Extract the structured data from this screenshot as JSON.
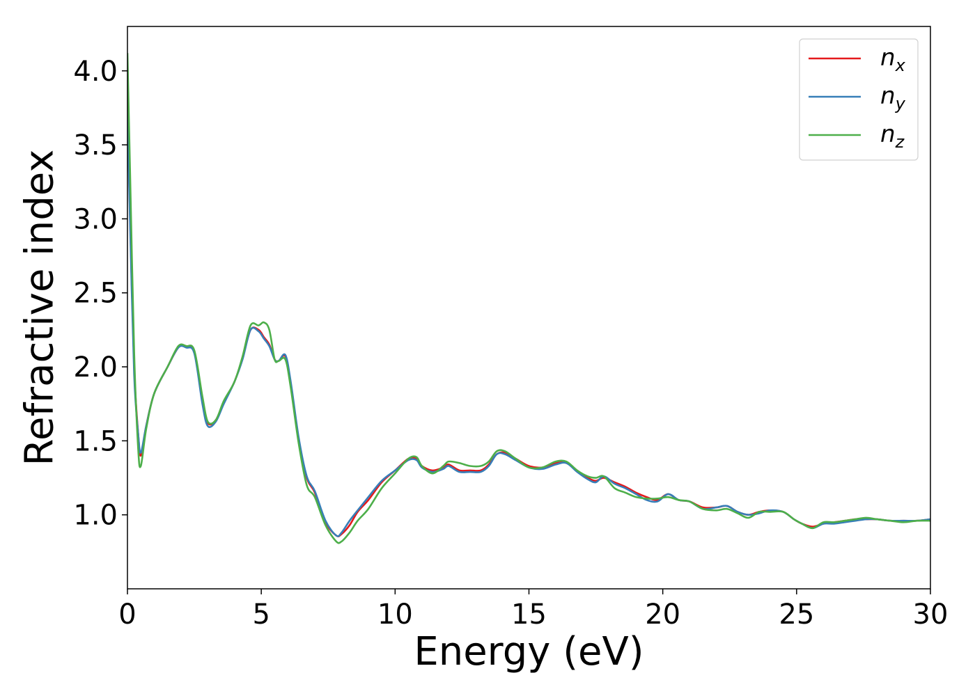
{
  "chart_data": {
    "type": "line",
    "xlabel": "Energy (eV)",
    "ylabel": "Refractive index",
    "xlim": [
      0,
      30
    ],
    "ylim": [
      0.5,
      4.3
    ],
    "xticks": [
      0,
      5,
      10,
      15,
      20,
      25,
      30
    ],
    "xtick_labels": [
      "0",
      "5",
      "10",
      "15",
      "20",
      "25",
      "30"
    ],
    "yticks": [
      1.0,
      1.5,
      2.0,
      2.5,
      3.0,
      3.5,
      4.0
    ],
    "ytick_labels": [
      "1.0",
      "1.5",
      "2.0",
      "2.5",
      "3.0",
      "3.5",
      "4.0"
    ],
    "grid": false,
    "legend_position": "top-right",
    "series": [
      {
        "name": "n_x",
        "legend_base": "n",
        "legend_sub": "x",
        "color": "#e41a1c",
        "x": [
          0,
          0.1,
          0.25,
          0.4,
          0.5,
          0.7,
          1.0,
          1.5,
          1.9,
          2.2,
          2.5,
          2.8,
          3.0,
          3.3,
          3.6,
          4.0,
          4.3,
          4.6,
          4.9,
          5.1,
          5.3,
          5.5,
          5.65,
          5.9,
          6.1,
          6.4,
          6.7,
          7.0,
          7.4,
          7.8,
          8.0,
          8.3,
          8.6,
          9.0,
          9.5,
          10.0,
          10.5,
          10.8,
          11.0,
          11.4,
          11.8,
          12.0,
          12.4,
          12.8,
          13.2,
          13.5,
          13.8,
          14.1,
          14.5,
          15.0,
          15.5,
          16.0,
          16.4,
          16.8,
          17.2,
          17.5,
          17.8,
          18.2,
          18.6,
          19.0,
          19.4,
          19.8,
          20.2,
          20.6,
          21.0,
          21.5,
          22.0,
          22.4,
          22.8,
          23.2,
          23.6,
          24.0,
          24.5,
          24.9,
          25.2,
          25.6,
          26.0,
          26.4,
          26.8,
          27.2,
          27.6,
          28.0,
          28.5,
          29.0,
          29.5,
          30.0
        ],
        "y": [
          3.8,
          3.0,
          2.0,
          1.55,
          1.4,
          1.6,
          1.82,
          2.0,
          2.13,
          2.14,
          2.1,
          1.78,
          1.62,
          1.64,
          1.76,
          1.9,
          2.06,
          2.25,
          2.25,
          2.2,
          2.15,
          2.05,
          2.04,
          2.07,
          1.88,
          1.5,
          1.25,
          1.15,
          0.95,
          0.86,
          0.87,
          0.93,
          1.02,
          1.1,
          1.22,
          1.3,
          1.38,
          1.38,
          1.33,
          1.3,
          1.32,
          1.34,
          1.3,
          1.3,
          1.3,
          1.34,
          1.41,
          1.42,
          1.38,
          1.33,
          1.32,
          1.35,
          1.35,
          1.3,
          1.25,
          1.23,
          1.25,
          1.22,
          1.19,
          1.15,
          1.12,
          1.1,
          1.14,
          1.1,
          1.09,
          1.05,
          1.05,
          1.06,
          1.02,
          1.0,
          1.02,
          1.03,
          1.02,
          0.97,
          0.94,
          0.92,
          0.94,
          0.95,
          0.96,
          0.97,
          0.97,
          0.97,
          0.96,
          0.96,
          0.96,
          0.97
        ]
      },
      {
        "name": "n_y",
        "legend_base": "n",
        "legend_sub": "y",
        "color": "#377eb8",
        "x": [
          0,
          0.1,
          0.25,
          0.4,
          0.5,
          0.7,
          1.0,
          1.5,
          1.9,
          2.2,
          2.5,
          2.8,
          3.0,
          3.3,
          3.6,
          4.0,
          4.3,
          4.6,
          4.9,
          5.1,
          5.3,
          5.5,
          5.65,
          5.9,
          6.1,
          6.4,
          6.7,
          7.0,
          7.4,
          7.8,
          8.0,
          8.3,
          8.6,
          9.0,
          9.5,
          10.0,
          10.5,
          10.8,
          11.0,
          11.4,
          11.8,
          12.0,
          12.4,
          12.8,
          13.2,
          13.5,
          13.8,
          14.1,
          14.5,
          15.0,
          15.5,
          16.0,
          16.4,
          16.8,
          17.2,
          17.5,
          17.8,
          18.2,
          18.6,
          19.0,
          19.4,
          19.8,
          20.2,
          20.6,
          21.0,
          21.5,
          22.0,
          22.4,
          22.8,
          23.2,
          23.6,
          24.0,
          24.5,
          24.9,
          25.2,
          25.6,
          26.0,
          26.4,
          26.8,
          27.2,
          27.6,
          28.0,
          28.5,
          29.0,
          29.5,
          30.0
        ],
        "y": [
          3.75,
          2.95,
          1.95,
          1.55,
          1.42,
          1.6,
          1.82,
          2.0,
          2.13,
          2.13,
          2.09,
          1.75,
          1.6,
          1.63,
          1.75,
          1.9,
          2.05,
          2.25,
          2.24,
          2.19,
          2.14,
          2.05,
          2.04,
          2.08,
          1.9,
          1.52,
          1.26,
          1.16,
          0.96,
          0.86,
          0.88,
          0.96,
          1.03,
          1.12,
          1.23,
          1.3,
          1.37,
          1.37,
          1.32,
          1.29,
          1.31,
          1.33,
          1.29,
          1.29,
          1.29,
          1.33,
          1.41,
          1.41,
          1.37,
          1.32,
          1.31,
          1.34,
          1.35,
          1.29,
          1.24,
          1.22,
          1.26,
          1.21,
          1.18,
          1.14,
          1.1,
          1.09,
          1.14,
          1.1,
          1.09,
          1.04,
          1.05,
          1.06,
          1.02,
          1.0,
          1.01,
          1.03,
          1.02,
          0.97,
          0.94,
          0.91,
          0.94,
          0.94,
          0.95,
          0.96,
          0.97,
          0.97,
          0.96,
          0.96,
          0.96,
          0.97
        ]
      },
      {
        "name": "n_z",
        "legend_base": "n",
        "legend_sub": "z",
        "color": "#4daf4a",
        "x": [
          0,
          0.1,
          0.25,
          0.4,
          0.5,
          0.7,
          1.0,
          1.5,
          1.9,
          2.2,
          2.5,
          2.8,
          3.0,
          3.3,
          3.6,
          4.0,
          4.3,
          4.6,
          4.9,
          5.1,
          5.3,
          5.5,
          5.65,
          5.9,
          6.1,
          6.4,
          6.7,
          7.0,
          7.4,
          7.8,
          8.0,
          8.3,
          8.6,
          9.0,
          9.5,
          10.0,
          10.5,
          10.8,
          11.0,
          11.4,
          11.8,
          12.0,
          12.4,
          12.8,
          13.2,
          13.5,
          13.8,
          14.1,
          14.5,
          15.0,
          15.5,
          16.0,
          16.4,
          16.8,
          17.2,
          17.5,
          17.8,
          18.2,
          18.6,
          19.0,
          19.4,
          19.8,
          20.2,
          20.6,
          21.0,
          21.5,
          22.0,
          22.4,
          22.8,
          23.2,
          23.6,
          24.0,
          24.5,
          24.9,
          25.2,
          25.6,
          26.0,
          26.4,
          26.8,
          27.2,
          27.6,
          28.0,
          28.5,
          29.0,
          29.5,
          30.0
        ],
        "y": [
          4.12,
          3.3,
          2.1,
          1.45,
          1.33,
          1.58,
          1.82,
          2.0,
          2.14,
          2.14,
          2.11,
          1.8,
          1.63,
          1.64,
          1.77,
          1.9,
          2.07,
          2.28,
          2.28,
          2.3,
          2.25,
          2.05,
          2.04,
          2.05,
          1.86,
          1.48,
          1.2,
          1.12,
          0.93,
          0.82,
          0.82,
          0.88,
          0.96,
          1.04,
          1.18,
          1.28,
          1.38,
          1.39,
          1.33,
          1.28,
          1.33,
          1.36,
          1.35,
          1.33,
          1.33,
          1.36,
          1.43,
          1.43,
          1.38,
          1.32,
          1.32,
          1.36,
          1.36,
          1.3,
          1.26,
          1.25,
          1.26,
          1.18,
          1.15,
          1.12,
          1.11,
          1.11,
          1.12,
          1.1,
          1.09,
          1.04,
          1.03,
          1.04,
          1.01,
          0.98,
          1.02,
          1.02,
          1.02,
          0.97,
          0.94,
          0.91,
          0.95,
          0.95,
          0.96,
          0.97,
          0.98,
          0.97,
          0.96,
          0.95,
          0.96,
          0.96
        ]
      }
    ]
  }
}
